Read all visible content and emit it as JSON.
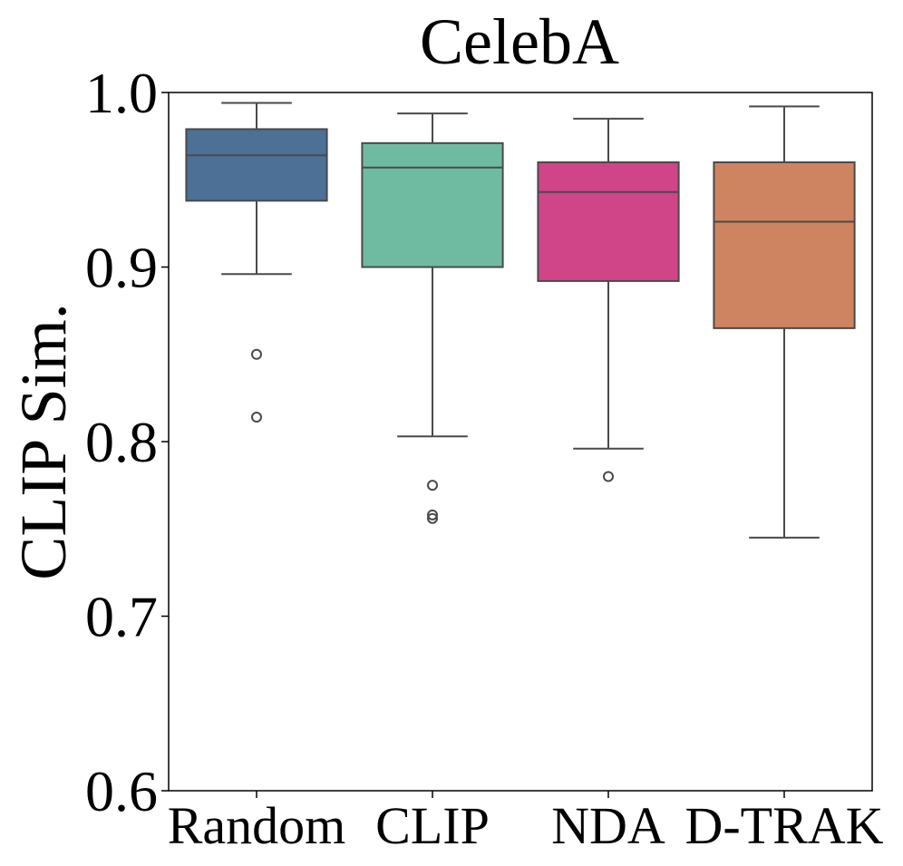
{
  "chart_data": {
    "type": "box",
    "title": "CelebA",
    "xlabel": "",
    "ylabel": "CLIP Sim.",
    "ylim": [
      0.6,
      1.0
    ],
    "yticks": [
      "0.6",
      "0.7",
      "0.8",
      "0.9",
      "1.0"
    ],
    "categories": [
      "Random",
      "CLIP",
      "NDA",
      "D-TRAK"
    ],
    "colors": {
      "Random": "#4c7096",
      "CLIP": "#6fbba2",
      "NDA": "#d04488",
      "D-TRAK": "#cf8461",
      "edge": "#4a4a4a"
    },
    "boxes": [
      {
        "name": "Random",
        "whisker_low": 0.896,
        "q1": 0.938,
        "median": 0.964,
        "q3": 0.979,
        "whisker_high": 0.994,
        "outliers": [
          0.85,
          0.814
        ]
      },
      {
        "name": "CLIP",
        "whisker_low": 0.803,
        "q1": 0.9,
        "median": 0.957,
        "q3": 0.971,
        "whisker_high": 0.988,
        "outliers": [
          0.775,
          0.758,
          0.756
        ]
      },
      {
        "name": "NDA",
        "whisker_low": 0.796,
        "q1": 0.892,
        "median": 0.943,
        "q3": 0.96,
        "whisker_high": 0.985,
        "outliers": [
          0.78
        ]
      },
      {
        "name": "D-TRAK",
        "whisker_low": 0.745,
        "q1": 0.865,
        "median": 0.926,
        "q3": 0.96,
        "whisker_high": 0.992,
        "outliers": []
      }
    ]
  }
}
